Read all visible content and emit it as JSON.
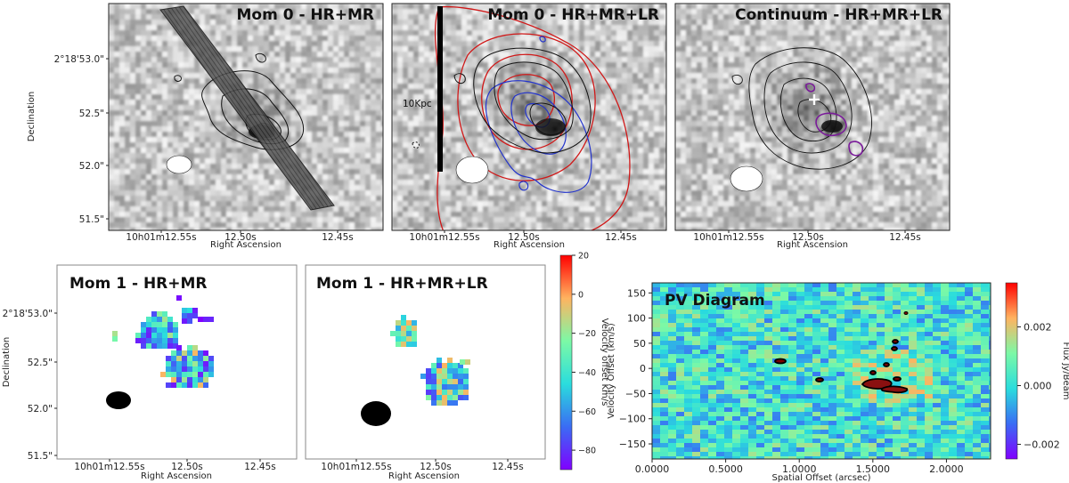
{
  "shared_axes": {
    "xlabel": "Right Ascension",
    "ylabel": "Declination",
    "x_ticks": [
      "10h01m12.55s",
      "12.50s",
      "12.45s"
    ],
    "y_ticks": [
      "2°18'53.0\"",
      "52.5\"",
      "52.0\"",
      "51.5\""
    ]
  },
  "chart_data": [
    {
      "type": "heatmap",
      "title": "Mom 0 - HR+MR",
      "xlabel": "Right Ascension",
      "ylabel": "Declination",
      "x_ticks": [
        "10h01m12.55s",
        "12.50s",
        "12.45s"
      ],
      "y_ticks": [
        "2°18'53.0\"",
        "52.5\"",
        "52.0\"",
        "51.5\""
      ],
      "colormap": "gray",
      "overlays": [
        "black contours",
        "hatched slit",
        "beam ellipse"
      ]
    },
    {
      "type": "heatmap",
      "title": "Mom 0 - HR+MR+LR",
      "xlabel": "Right Ascension",
      "x_ticks": [
        "10h01m12.55s",
        "12.50s",
        "12.45s"
      ],
      "colormap": "gray",
      "overlays": [
        "black contours",
        "red contours",
        "blue contours",
        "scale bar",
        "beam ellipse"
      ],
      "scale_bar_label": "10Kpc"
    },
    {
      "type": "heatmap",
      "title": "Continuum - HR+MR+LR",
      "xlabel": "Right Ascension",
      "x_ticks": [
        "10h01m12.55s",
        "12.50s",
        "12.45s"
      ],
      "colormap": "gray",
      "overlays": [
        "black contours",
        "purple contours",
        "cross marker",
        "beam ellipse"
      ]
    },
    {
      "type": "heatmap",
      "title": "Mom 1 - HR+MR",
      "xlabel": "Right Ascension",
      "ylabel": "Declination",
      "x_ticks": [
        "10h01m12.55s",
        "12.50s",
        "12.45s"
      ],
      "y_ticks": [
        "2°18'53.0\"",
        "52.5\"",
        "52.0\"",
        "51.5\""
      ],
      "colormap": "rainbow"
    },
    {
      "type": "heatmap",
      "title": "Mom 1 - HR+MR+LR",
      "xlabel": "Right Ascension",
      "x_ticks": [
        "10h01m12.55s",
        "12.50s",
        "12.45s"
      ],
      "colormap": "rainbow",
      "colorbar": {
        "label": "Velocity offset Km/s",
        "range": [
          -90,
          20
        ],
        "ticks": [
          "20",
          "0",
          "−20",
          "−40",
          "−60",
          "−80"
        ]
      }
    },
    {
      "type": "heatmap",
      "title": "PV Diagram",
      "xlabel": "Spatial Offset (arcsec)",
      "ylabel": "Velocity Offset (km/s)",
      "x_ticks": [
        "0.0000",
        "0.5000",
        "1.0000",
        "1.5000",
        "2.0000"
      ],
      "y_ticks": [
        "150",
        "100",
        "50",
        "0",
        "−50",
        "−100",
        "−150"
      ],
      "xlim": [
        0.0,
        2.3
      ],
      "ylim": [
        -180,
        170
      ],
      "colormap": "rainbow",
      "colorbar": {
        "label": "Flux Jy/Beam",
        "range": [
          -0.0025,
          0.0035
        ],
        "ticks": [
          "0.002",
          "0.000",
          "−0.002"
        ]
      }
    }
  ]
}
